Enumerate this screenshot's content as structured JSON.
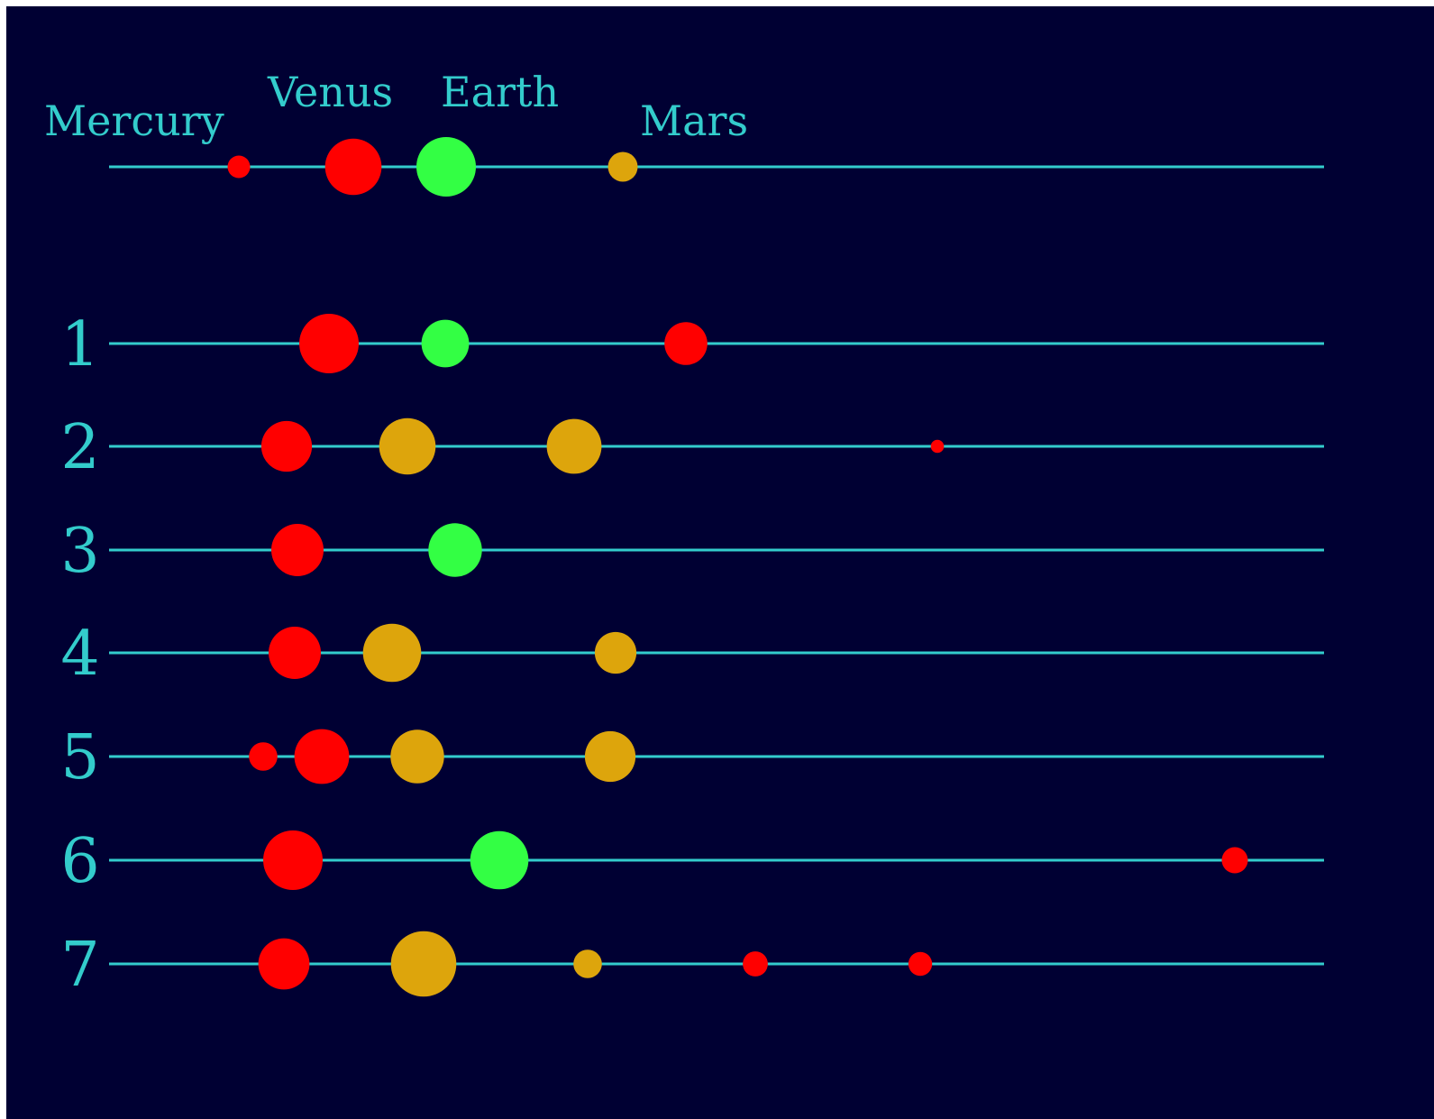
{
  "colors": {
    "background": "#000033",
    "line": "#33cccc",
    "label": "#33cccc",
    "red": "#ff0000",
    "green": "#33ff44",
    "gold": "#dda50c"
  },
  "reference": {
    "labels": [
      "Mercury",
      "Venus",
      "Earth",
      "Mars"
    ],
    "planets": [
      {
        "color": "red",
        "size": 0.38
      },
      {
        "color": "red",
        "size": 0.95
      },
      {
        "color": "green",
        "size": 1.0
      },
      {
        "color": "gold",
        "size": 0.5
      }
    ]
  },
  "systems": [
    {
      "label": "1",
      "planets": [
        {
          "color": "red",
          "size": 1.0
        },
        {
          "color": "green",
          "size": 0.8
        },
        {
          "color": "red",
          "size": 0.72
        }
      ]
    },
    {
      "label": "2",
      "planets": [
        {
          "color": "red",
          "size": 0.85
        },
        {
          "color": "gold",
          "size": 0.95
        },
        {
          "color": "gold",
          "size": 0.92
        },
        {
          "color": "red",
          "size": 0.22
        }
      ]
    },
    {
      "label": "3",
      "planets": [
        {
          "color": "red",
          "size": 0.88
        },
        {
          "color": "green",
          "size": 0.9
        }
      ]
    },
    {
      "label": "4",
      "planets": [
        {
          "color": "red",
          "size": 0.88
        },
        {
          "color": "gold",
          "size": 0.98
        },
        {
          "color": "gold",
          "size": 0.7
        }
      ]
    },
    {
      "label": "5",
      "planets": [
        {
          "color": "red",
          "size": 0.48
        },
        {
          "color": "red",
          "size": 0.92
        },
        {
          "color": "gold",
          "size": 0.9
        },
        {
          "color": "gold",
          "size": 0.85
        }
      ]
    },
    {
      "label": "6",
      "planets": [
        {
          "color": "red",
          "size": 1.0
        },
        {
          "color": "green",
          "size": 0.98
        },
        {
          "color": "red",
          "size": 0.44
        }
      ]
    },
    {
      "label": "7",
      "planets": [
        {
          "color": "red",
          "size": 0.86
        },
        {
          "color": "gold",
          "size": 1.1
        },
        {
          "color": "gold",
          "size": 0.48
        },
        {
          "color": "red",
          "size": 0.42
        },
        {
          "color": "red",
          "size": 0.4
        }
      ]
    }
  ]
}
